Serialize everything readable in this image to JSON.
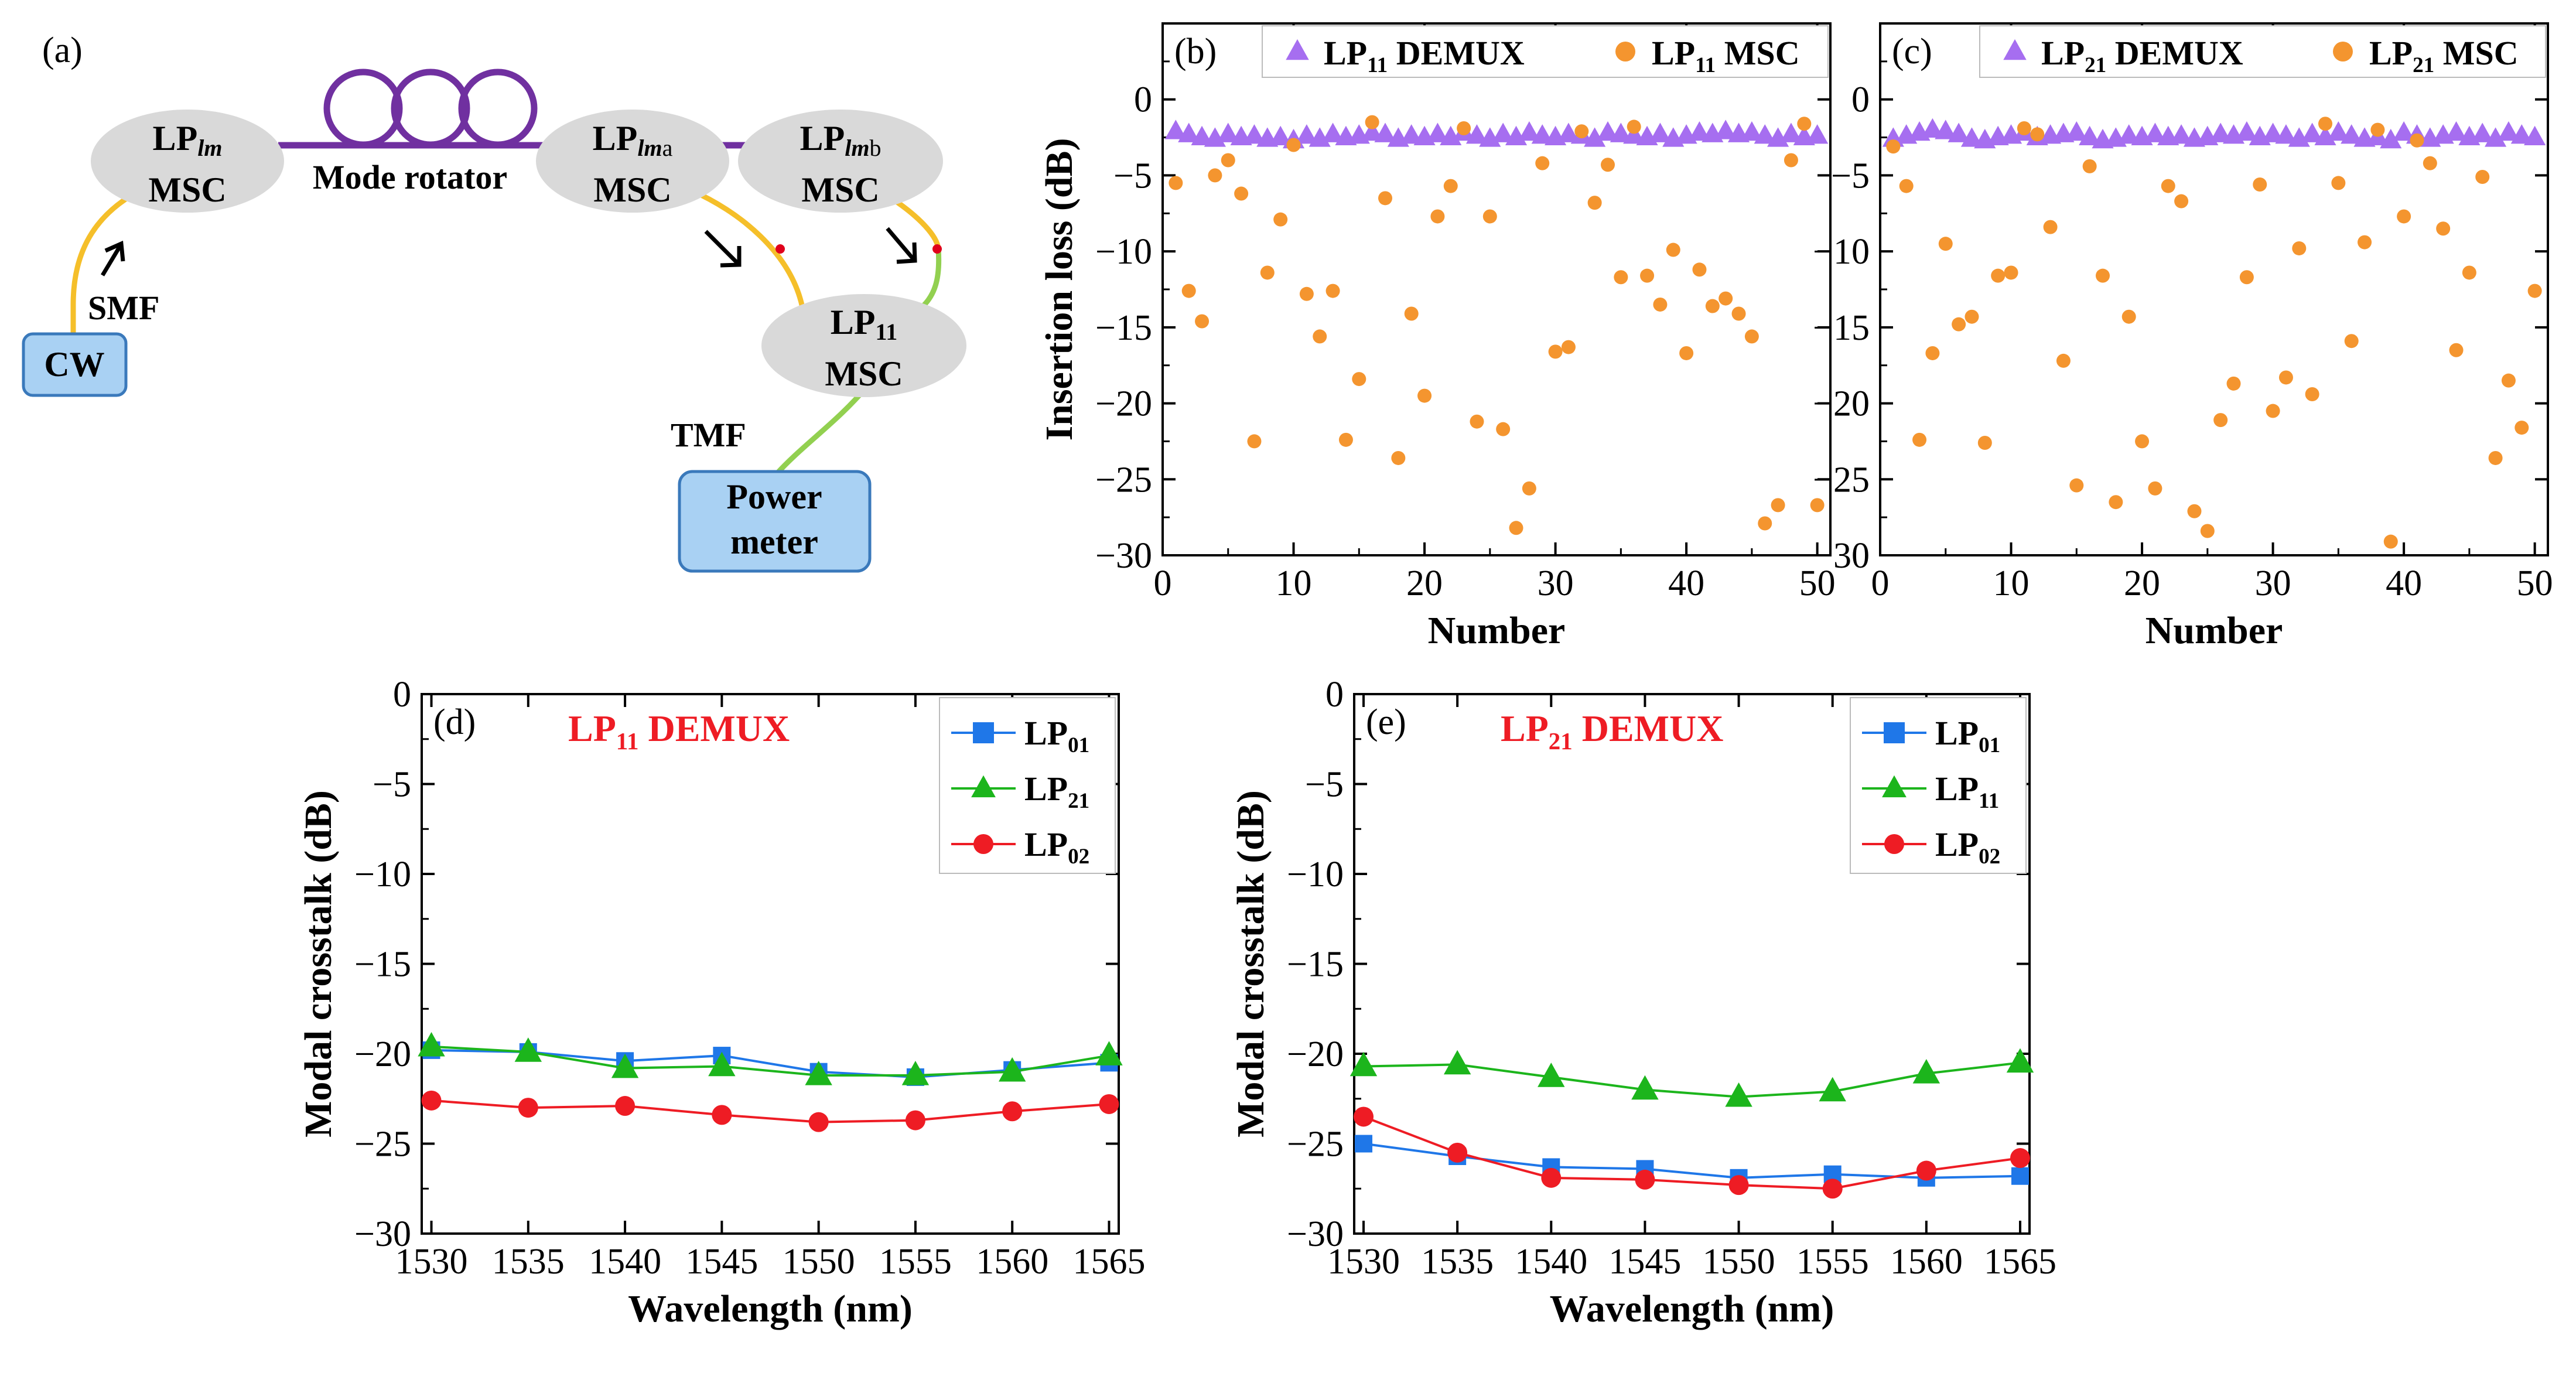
{
  "panel_a": {
    "label": "(a)",
    "lp_lm_main": "LP",
    "lp_lm_sub": "lm",
    "lp_lma_main": "LP",
    "lp_lma_sub": "lm",
    "lp_lma_tail": "a",
    "lp_lmb_main": "LP",
    "lp_lmb_sub": "lm",
    "lp_lmb_tail": "b",
    "lp11_main": "LP",
    "lp11_sub": "11",
    "msc": "MSC",
    "mode_rotator": "Mode rotator",
    "smf": "SMF",
    "tmf": "TMF",
    "cw": "CW",
    "power_meter_line1": "Power",
    "power_meter_line2": "meter",
    "colors": {
      "oval": "#d9d9d9",
      "box_fill": "#a9d1f3",
      "box_stroke": "#3a79bb",
      "smf_fiber": "#f5bf2a",
      "tmf_fiber": "#92d050",
      "rotator": "#7030a0",
      "dot": "#e0001b"
    }
  },
  "chart_data": [
    {
      "id": "b",
      "type": "scatter",
      "label": "(b)",
      "xlabel": "Number",
      "ylabel": "Insertion loss (dB)",
      "xlim": [
        0,
        51
      ],
      "ylim": [
        -30,
        5
      ],
      "xticks": [
        0,
        10,
        20,
        30,
        40,
        50
      ],
      "yticks": [
        0,
        -5,
        -10,
        -15,
        -20,
        -25,
        -30
      ],
      "legend": [
        {
          "main": "LP",
          "sub": "11",
          "tail": " DEMUX",
          "color": "#a66ef0",
          "marker": "triangle"
        },
        {
          "main": "LP",
          "sub": "11",
          "tail": " MSC",
          "color": "#f4952f",
          "marker": "circle"
        }
      ],
      "series": [
        {
          "name": "LP11 DEMUX",
          "color": "#a66ef0",
          "marker": "triangle",
          "x": [
            1,
            2,
            3,
            4,
            5,
            6,
            7,
            8,
            9,
            10,
            11,
            12,
            13,
            14,
            15,
            16,
            17,
            18,
            19,
            20,
            21,
            22,
            23,
            24,
            25,
            26,
            27,
            28,
            29,
            30,
            31,
            32,
            33,
            34,
            35,
            36,
            37,
            38,
            39,
            40,
            41,
            42,
            43,
            44,
            45,
            46,
            47,
            48,
            49,
            50
          ],
          "y": [
            -2.1,
            -2.3,
            -2.5,
            -2.6,
            -2.3,
            -2.5,
            -2.4,
            -2.6,
            -2.5,
            -2.7,
            -2.4,
            -2.6,
            -2.3,
            -2.5,
            -2.4,
            -2.2,
            -2.3,
            -2.6,
            -2.4,
            -2.5,
            -2.3,
            -2.5,
            -2.2,
            -2.4,
            -2.6,
            -2.3,
            -2.5,
            -2.2,
            -2.4,
            -2.5,
            -2.3,
            -2.4,
            -2.6,
            -2.2,
            -2.3,
            -2.4,
            -2.5,
            -2.3,
            -2.6,
            -2.4,
            -2.2,
            -2.3,
            -2.1,
            -2.3,
            -2.2,
            -2.4,
            -2.6,
            -2.3,
            -2.5,
            -2.4
          ]
        },
        {
          "name": "LP11 MSC",
          "color": "#f4952f",
          "marker": "circle",
          "x": [
            1,
            2,
            3,
            4,
            5,
            6,
            7,
            8,
            9,
            10,
            11,
            12,
            13,
            14,
            15,
            16,
            17,
            18,
            19,
            20,
            21,
            22,
            23,
            24,
            25,
            26,
            27,
            28,
            29,
            30,
            31,
            32,
            33,
            34,
            35,
            36,
            37,
            38,
            39,
            40,
            41,
            42,
            43,
            44,
            45,
            46,
            47,
            48,
            49,
            50
          ],
          "y": [
            -5.5,
            -12.6,
            -14.6,
            -5.0,
            -4.0,
            -6.2,
            -22.5,
            -11.4,
            -7.9,
            -3.0,
            -12.8,
            -15.6,
            -12.6,
            -22.4,
            -18.4,
            -1.5,
            -6.5,
            -23.6,
            -14.1,
            -19.5,
            -7.7,
            -5.7,
            -1.9,
            -21.2,
            -7.7,
            -21.7,
            -28.2,
            -25.6,
            -4.2,
            -16.6,
            -16.3,
            -2.1,
            -6.8,
            -4.3,
            -11.7,
            -1.8,
            -11.6,
            -13.5,
            -9.9,
            -16.7,
            -11.2,
            -13.6,
            -13.1,
            -14.1,
            -15.6,
            -27.9,
            -26.7,
            -4.0,
            -1.6,
            -26.7
          ]
        }
      ]
    },
    {
      "id": "c",
      "type": "scatter",
      "label": "(c)",
      "xlabel": "Number",
      "ylabel": "",
      "xlim": [
        0,
        51
      ],
      "ylim": [
        -30,
        5
      ],
      "xticks": [
        0,
        10,
        20,
        30,
        40,
        50
      ],
      "yticks": [
        0,
        -5,
        -10,
        -15,
        -20,
        -25,
        -30
      ],
      "legend": [
        {
          "main": "LP",
          "sub": "21",
          "tail": " DEMUX",
          "color": "#a66ef0",
          "marker": "triangle"
        },
        {
          "main": "LP",
          "sub": "21",
          "tail": " MSC",
          "color": "#f4952f",
          "marker": "circle"
        }
      ],
      "series": [
        {
          "name": "LP21 DEMUX",
          "color": "#a66ef0",
          "marker": "triangle",
          "x": [
            1,
            2,
            3,
            4,
            5,
            6,
            7,
            8,
            9,
            10,
            11,
            12,
            13,
            14,
            15,
            16,
            17,
            18,
            19,
            20,
            21,
            22,
            23,
            24,
            25,
            26,
            27,
            28,
            29,
            30,
            31,
            32,
            33,
            34,
            35,
            36,
            37,
            38,
            39,
            40,
            41,
            42,
            43,
            44,
            45,
            46,
            47,
            48,
            49,
            50
          ],
          "y": [
            -2.6,
            -2.4,
            -2.2,
            -2.0,
            -2.1,
            -2.3,
            -2.6,
            -2.7,
            -2.5,
            -2.4,
            -2.2,
            -2.5,
            -2.4,
            -2.3,
            -2.2,
            -2.5,
            -2.7,
            -2.6,
            -2.4,
            -2.5,
            -2.3,
            -2.5,
            -2.4,
            -2.6,
            -2.5,
            -2.3,
            -2.4,
            -2.2,
            -2.5,
            -2.3,
            -2.4,
            -2.6,
            -2.3,
            -2.5,
            -2.2,
            -2.4,
            -2.6,
            -2.5,
            -2.7,
            -2.2,
            -2.4,
            -2.6,
            -2.4,
            -2.2,
            -2.5,
            -2.3,
            -2.6,
            -2.2,
            -2.4,
            -2.5
          ]
        },
        {
          "name": "LP21 MSC",
          "color": "#f4952f",
          "marker": "circle",
          "x": [
            1,
            2,
            3,
            4,
            5,
            6,
            7,
            8,
            9,
            10,
            11,
            12,
            13,
            14,
            15,
            16,
            17,
            18,
            19,
            20,
            21,
            22,
            23,
            24,
            25,
            26,
            27,
            28,
            29,
            30,
            31,
            32,
            33,
            34,
            35,
            36,
            37,
            38,
            39,
            40,
            41,
            42,
            43,
            44,
            45,
            46,
            47,
            48,
            49,
            50
          ],
          "y": [
            -3.1,
            -5.7,
            -22.4,
            -16.7,
            -9.5,
            -14.8,
            -14.3,
            -22.6,
            -11.6,
            -11.4,
            -1.9,
            -2.3,
            -8.4,
            -17.2,
            -25.4,
            -4.4,
            -11.6,
            -26.5,
            -14.3,
            -22.5,
            -25.6,
            -5.7,
            -6.7,
            -27.1,
            -28.4,
            -21.1,
            -18.7,
            -11.7,
            -5.6,
            -20.5,
            -18.3,
            -9.8,
            -19.4,
            -1.6,
            -5.5,
            -15.9,
            -9.4,
            -2.0,
            -29.1,
            -7.7,
            -2.7,
            -4.2,
            -8.5,
            -16.5,
            -11.4,
            -5.1,
            -23.6,
            -18.5,
            -21.6,
            -12.6
          ]
        }
      ]
    },
    {
      "id": "d",
      "type": "line",
      "label": "(d)",
      "title_main": "LP",
      "title_sub": "11",
      "title_tail": " DEMUX",
      "title_color": "#ee1c24",
      "xlabel": "Wavelength (nm)",
      "ylabel": "Modal crosstalk (dB)",
      "xlim": [
        1529.5,
        1565.5
      ],
      "ylim": [
        -30,
        0
      ],
      "xticks": [
        1530,
        1535,
        1540,
        1545,
        1550,
        1555,
        1560,
        1565
      ],
      "yticks": [
        0,
        -5,
        -10,
        -15,
        -20,
        -25,
        -30
      ],
      "legend": [
        {
          "main": "LP",
          "sub": "01",
          "color": "#1f77e8",
          "marker": "square"
        },
        {
          "main": "LP",
          "sub": "21",
          "color": "#1cb51c",
          "marker": "triangle"
        },
        {
          "main": "LP",
          "sub": "02",
          "color": "#ee1c24",
          "marker": "circle"
        }
      ],
      "x": [
        1530,
        1535,
        1540,
        1545,
        1550,
        1555,
        1560,
        1565
      ],
      "series": [
        {
          "name": "LP01",
          "color": "#1f77e8",
          "marker": "square",
          "values": [
            -19.8,
            -19.9,
            -20.4,
            -20.1,
            -21.0,
            -21.3,
            -20.9,
            -20.5
          ]
        },
        {
          "name": "LP21",
          "color": "#1cb51c",
          "marker": "triangle",
          "values": [
            -19.6,
            -19.9,
            -20.8,
            -20.7,
            -21.2,
            -21.2,
            -21.0,
            -20.1
          ]
        },
        {
          "name": "LP02",
          "color": "#ee1c24",
          "marker": "circle",
          "values": [
            -22.6,
            -23.0,
            -22.9,
            -23.4,
            -23.8,
            -23.7,
            -23.2,
            -22.8
          ]
        }
      ]
    },
    {
      "id": "e",
      "type": "line",
      "label": "(e)",
      "title_main": "LP",
      "title_sub": "21",
      "title_tail": " DEMUX",
      "title_color": "#ee1c24",
      "xlabel": "Wavelength (nm)",
      "ylabel": "Modal crosstalk (dB)",
      "xlim": [
        1529.5,
        1565.5
      ],
      "ylim": [
        -30,
        0
      ],
      "xticks": [
        1530,
        1535,
        1540,
        1545,
        1550,
        1555,
        1560,
        1565
      ],
      "yticks": [
        0,
        -5,
        -10,
        -15,
        -20,
        -25,
        -30
      ],
      "legend": [
        {
          "main": "LP",
          "sub": "01",
          "color": "#1f77e8",
          "marker": "square"
        },
        {
          "main": "LP",
          "sub": "11",
          "color": "#1cb51c",
          "marker": "triangle"
        },
        {
          "main": "LP",
          "sub": "02",
          "color": "#ee1c24",
          "marker": "circle"
        }
      ],
      "x": [
        1530,
        1535,
        1540,
        1545,
        1550,
        1555,
        1560,
        1565
      ],
      "series": [
        {
          "name": "LP01",
          "color": "#1f77e8",
          "marker": "square",
          "values": [
            -25.0,
            -25.7,
            -26.3,
            -26.4,
            -26.9,
            -26.7,
            -26.9,
            -26.8
          ]
        },
        {
          "name": "LP11",
          "color": "#1cb51c",
          "marker": "triangle",
          "values": [
            -20.7,
            -20.6,
            -21.3,
            -22.0,
            -22.4,
            -22.1,
            -21.1,
            -20.5
          ]
        },
        {
          "name": "LP02",
          "color": "#ee1c24",
          "marker": "circle",
          "values": [
            -23.5,
            -25.5,
            -26.9,
            -27.0,
            -27.3,
            -27.5,
            -26.5,
            -25.8
          ]
        }
      ]
    }
  ]
}
